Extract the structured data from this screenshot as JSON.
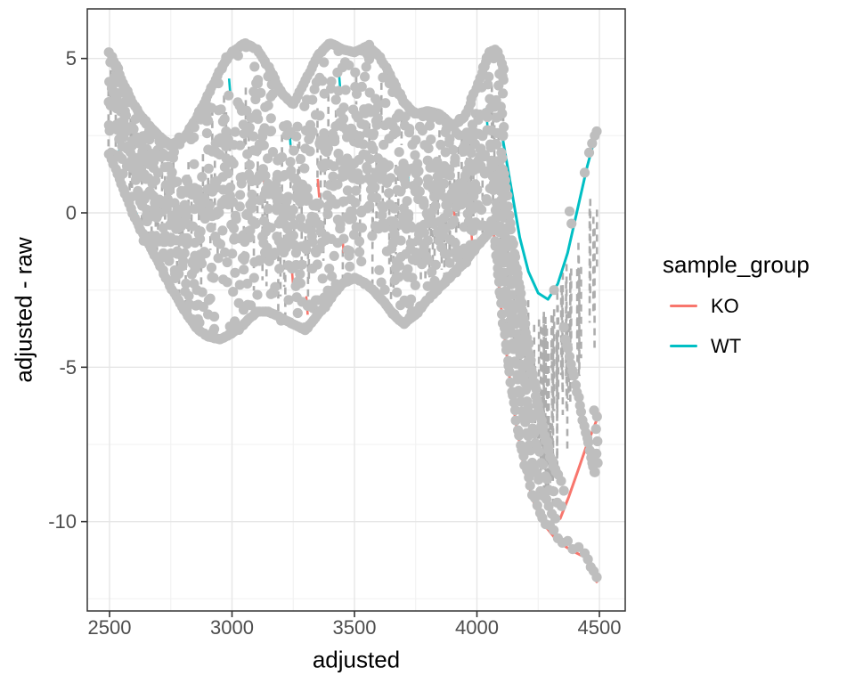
{
  "chart_data": {
    "type": "scatter",
    "title": "",
    "xlabel": "adjusted",
    "ylabel": "adjusted - raw",
    "x_ticks": [
      2500,
      3000,
      3500,
      4000,
      4500
    ],
    "x_minor_ticks": [
      2750,
      3250,
      3750,
      4250
    ],
    "y_ticks": [
      5,
      0,
      -5,
      -10
    ],
    "y_minor_ticks": [
      2.5,
      -2.5,
      -7.5,
      -12.5
    ],
    "xlim": [
      2409,
      4605
    ],
    "ylim": [
      -12.9,
      6.6
    ],
    "grid": "on",
    "legend": {
      "title": "sample_group",
      "position": "right",
      "entries": [
        {
          "label": "KO",
          "color": "#F8766D"
        },
        {
          "label": "WT",
          "color": "#00BFC4"
        }
      ]
    },
    "colors": {
      "point": "#BEBEBE",
      "dash": "#ADADAD",
      "KO": "#F8766D",
      "WT": "#00BFC4",
      "grid_major": "#E6E6E6",
      "grid_minor": "#F2F2F2",
      "panel_border": "#333333",
      "tick": "#333333",
      "tick_label": "#4D4D4D"
    },
    "style": {
      "point_radius": 5.6,
      "line_width": 3,
      "dash_width": 2.6,
      "seed": 7
    },
    "cloud_envelope": [
      [
        2500,
        5.3,
        1.8
      ],
      [
        2550,
        4.4,
        0.8
      ],
      [
        2600,
        3.6,
        -0.2
      ],
      [
        2650,
        3.0,
        -1.0
      ],
      [
        2700,
        2.6,
        -1.7
      ],
      [
        2750,
        2.3,
        -2.5
      ],
      [
        2800,
        2.5,
        -3.2
      ],
      [
        2850,
        3.1,
        -3.8
      ],
      [
        2900,
        3.9,
        -4.1
      ],
      [
        2950,
        4.7,
        -4.2
      ],
      [
        3000,
        5.3,
        -4.0
      ],
      [
        3050,
        5.6,
        -3.7
      ],
      [
        3100,
        5.4,
        -3.3
      ],
      [
        3150,
        4.8,
        -3.3
      ],
      [
        3200,
        4.0,
        -3.5
      ],
      [
        3250,
        3.6,
        -3.7
      ],
      [
        3300,
        4.4,
        -3.9
      ],
      [
        3350,
        5.2,
        -3.4
      ],
      [
        3400,
        5.6,
        -2.9
      ],
      [
        3450,
        5.4,
        -2.4
      ],
      [
        3500,
        5.3,
        -2.2
      ],
      [
        3550,
        5.5,
        -2.4
      ],
      [
        3600,
        5.2,
        -2.8
      ],
      [
        3650,
        4.5,
        -3.3
      ],
      [
        3700,
        3.7,
        -3.7
      ],
      [
        3750,
        3.3,
        -3.4
      ],
      [
        3800,
        3.4,
        -2.9
      ],
      [
        3850,
        3.3,
        -2.5
      ],
      [
        3900,
        2.9,
        -2.1
      ],
      [
        3950,
        3.2,
        -1.7
      ],
      [
        4000,
        4.2,
        -1.2
      ],
      [
        4050,
        5.3,
        -0.7
      ],
      [
        4080,
        5.4,
        -0.2
      ],
      [
        4110,
        4.7,
        0.4
      ]
    ],
    "tail": {
      "gray_series": [
        [
          [
            4070,
            -0.6
          ],
          [
            4100,
            -3.0
          ],
          [
            4130,
            -5.0
          ],
          [
            4160,
            -6.7
          ],
          [
            4195,
            -8.2
          ],
          [
            4235,
            -9.3
          ],
          [
            4280,
            -10.0
          ],
          [
            4330,
            -10.5
          ],
          [
            4390,
            -10.8
          ],
          [
            4440,
            -11.0
          ],
          [
            4489,
            -11.8
          ]
        ],
        [
          [
            4080,
            0.3
          ],
          [
            4115,
            -2.2
          ],
          [
            4150,
            -4.5
          ],
          [
            4185,
            -6.4
          ],
          [
            4225,
            -8.0
          ],
          [
            4270,
            -9.2
          ],
          [
            4320,
            -9.9
          ]
        ],
        [
          [
            4090,
            1.2
          ],
          [
            4125,
            -1.2
          ],
          [
            4160,
            -3.6
          ],
          [
            4200,
            -5.8
          ],
          [
            4245,
            -7.6
          ],
          [
            4295,
            -8.9
          ],
          [
            4345,
            -9.5
          ]
        ],
        [
          [
            4100,
            2.0
          ],
          [
            4135,
            -0.3
          ],
          [
            4175,
            -2.8
          ],
          [
            4220,
            -5.2
          ],
          [
            4270,
            -7.1
          ],
          [
            4320,
            -8.3
          ]
        ],
        [
          [
            4150,
            -1.0
          ],
          [
            4195,
            -3.6
          ],
          [
            4245,
            -6.0
          ],
          [
            4300,
            -7.9
          ],
          [
            4355,
            -9.0
          ]
        ],
        [
          [
            4355,
            -3.8
          ],
          [
            4385,
            -4.9
          ],
          [
            4415,
            -6.0
          ],
          [
            4445,
            -7.1
          ],
          [
            4465,
            -7.9
          ],
          [
            4480,
            -8.4
          ]
        ]
      ],
      "cluster_points": [
        [
          4478,
          -6.4
        ],
        [
          4490,
          -6.6
        ],
        [
          4486,
          -7.0
        ],
        [
          4492,
          -7.4
        ],
        [
          4488,
          -7.8
        ],
        [
          4493,
          -8.1
        ],
        [
          4482,
          -8.4
        ],
        [
          4471,
          -8.1
        ]
      ],
      "wt_line": [
        [
          4105,
          2.4
        ],
        [
          4140,
          0.8
        ],
        [
          4175,
          -0.8
        ],
        [
          4210,
          -1.9
        ],
        [
          4250,
          -2.6
        ],
        [
          4290,
          -2.8
        ],
        [
          4330,
          -2.3
        ],
        [
          4370,
          -1.3
        ],
        [
          4410,
          0.1
        ],
        [
          4450,
          1.5
        ],
        [
          4489,
          2.64
        ]
      ],
      "wt_points": [
        [
          4315,
          -2.5
        ],
        [
          4378,
          0.05
        ],
        [
          4386,
          -0.35
        ],
        [
          4440,
          1.3
        ],
        [
          4458,
          1.95
        ],
        [
          4470,
          2.25
        ],
        [
          4481,
          2.5
        ],
        [
          4489,
          2.64
        ]
      ],
      "ko_lines": [
        [
          [
            4070,
            -0.75
          ],
          [
            4100,
            -3.15
          ],
          [
            4130,
            -5.15
          ],
          [
            4160,
            -6.85
          ],
          [
            4195,
            -8.35
          ],
          [
            4235,
            -9.45
          ],
          [
            4280,
            -10.15
          ],
          [
            4330,
            -10.65
          ],
          [
            4390,
            -10.95
          ],
          [
            4440,
            -11.15
          ],
          [
            4489,
            -11.95
          ]
        ],
        [
          [
            4300,
            -9.7
          ],
          [
            4340,
            -9.9
          ],
          [
            4375,
            -9.2
          ],
          [
            4410,
            -8.4
          ],
          [
            4445,
            -7.6
          ],
          [
            4475,
            -7.0
          ],
          [
            4499,
            -6.5
          ]
        ]
      ],
      "dash_regions": [
        {
          "x": [
            4095,
            4330
          ],
          "n": 26,
          "len": [
            0.8,
            2.6
          ],
          "top": [
            [
              4095,
              1.0
            ],
            [
              4180,
              -3.0
            ],
            [
              4330,
              -7.8
            ]
          ],
          "bot": [
            [
              4095,
              -3.2
            ],
            [
              4200,
              -8.0
            ],
            [
              4330,
              -10.4
            ]
          ]
        },
        {
          "x": [
            4195,
            4500
          ],
          "n": 50,
          "len": [
            1.5,
            5.0
          ],
          "top": [
            [
              4195,
              -2.0
            ],
            [
              4290,
              -2.9
            ],
            [
              4380,
              -1.4
            ],
            [
              4500,
              2.0
            ]
          ],
          "bot": [
            [
              4195,
              -8.6
            ],
            [
              4300,
              -10.1
            ],
            [
              4420,
              -10.6
            ],
            [
              4500,
              -8.5
            ]
          ]
        }
      ]
    },
    "flecks": [
      [
        2613,
        -0.3,
        "WT"
      ],
      [
        2540,
        2.0,
        "WT"
      ],
      [
        2991,
        4.05,
        "WT"
      ],
      [
        3129,
        1.2,
        "KO"
      ],
      [
        3236,
        2.5,
        "WT"
      ],
      [
        3247,
        -2.1,
        "KO"
      ],
      [
        3306,
        -3.0,
        "KO"
      ],
      [
        3353,
        0.8,
        "KO"
      ],
      [
        3440,
        4.2,
        "WT"
      ],
      [
        3453,
        -1.0,
        "KO"
      ],
      [
        3718,
        1.3,
        "WT"
      ],
      [
        3905,
        0.2,
        "KO"
      ],
      [
        3980,
        -0.9,
        "KO"
      ],
      [
        4040,
        3.1,
        "WT"
      ]
    ]
  }
}
